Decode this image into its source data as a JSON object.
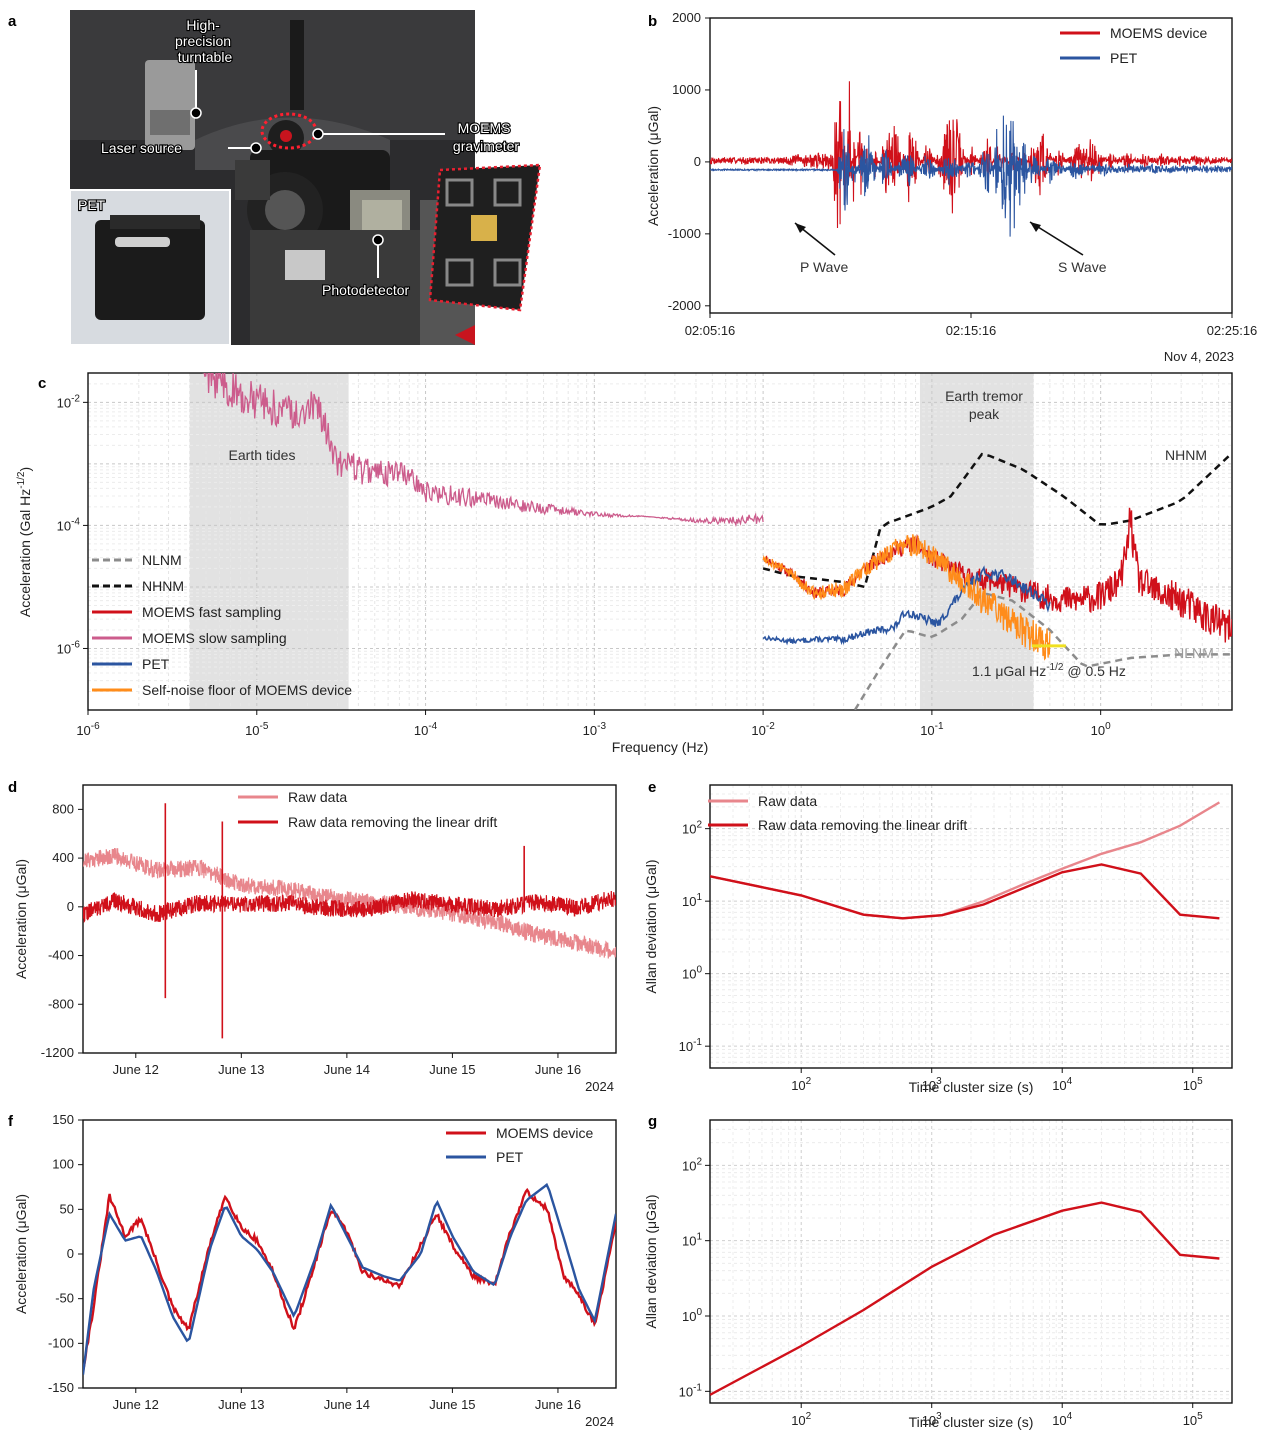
{
  "panels": {
    "a": {
      "label": "a",
      "annotations": [
        "High-precision turntable",
        "Laser source",
        "MOEMS gravimeter",
        "PET",
        "Photodetector"
      ]
    },
    "b": {
      "label": "b"
    },
    "c": {
      "label": "c"
    },
    "d": {
      "label": "d"
    },
    "e": {
      "label": "e"
    },
    "f": {
      "label": "f"
    },
    "g": {
      "label": "g"
    }
  },
  "colors": {
    "moems": "#d0101a",
    "pet": "#2b55a0",
    "slow": "#cc5c8c",
    "noise": "#ff8c1a",
    "raw": "#e8868c",
    "nlnm": "#8c8c8c",
    "nhnm": "#111111",
    "highlight": "#f0e020"
  },
  "chart_data": [
    {
      "id": "b",
      "type": "line",
      "title": "",
      "xlabel": "",
      "ylabel": "Acceleration (μGal)",
      "xticks": [
        "02:05:16",
        "02:15:16",
        "02:25:16"
      ],
      "x_note": "Nov 4, 2023",
      "ylim": [
        -2100,
        2000
      ],
      "yticks": [
        -2000,
        -1000,
        0,
        1000,
        2000
      ],
      "series": [
        {
          "name": "MOEMS device",
          "color": "#d0101a",
          "x": [
            0,
            100,
            200,
            280,
            300,
            310,
            320,
            330,
            345,
            360,
            380,
            420,
            460,
            500,
            540,
            560,
            600,
            640,
            660,
            700,
            720,
            760,
            800,
            840,
            880,
            920,
            960,
            1000,
            1040,
            1080,
            1120,
            1160,
            1200
          ],
          "y": [
            0,
            20,
            100,
            150,
            1700,
            -900,
            1500,
            -700,
            800,
            -400,
            300,
            -1000,
            800,
            -400,
            600,
            900,
            -300,
            450,
            -250,
            300,
            -200,
            700,
            -250,
            250,
            400,
            -150,
            200,
            -150,
            150,
            -100,
            120,
            -80,
            60
          ]
        },
        {
          "name": "PET",
          "color": "#2b55a0",
          "x": [
            0,
            100,
            200,
            290,
            300,
            310,
            330,
            360,
            400,
            450,
            500,
            550,
            600,
            640,
            660,
            680,
            690,
            700,
            710,
            720,
            740,
            780,
            840,
            900,
            960,
            1020,
            1080,
            1140,
            1200
          ],
          "y": [
            -100,
            -100,
            -110,
            -110,
            500,
            -950,
            400,
            -700,
            400,
            -400,
            300,
            -300,
            250,
            -500,
            700,
            -1600,
            1550,
            -1900,
            900,
            -600,
            400,
            -300,
            200,
            -150,
            100,
            -100,
            50,
            -50,
            20
          ]
        }
      ],
      "annotations": [
        "P Wave",
        "S Wave"
      ],
      "legend": "top-right"
    },
    {
      "id": "c",
      "type": "line",
      "xscale": "log",
      "yscale": "log",
      "xlabel": "Frequency (Hz)",
      "ylabel": "Acceleration (Gal Hz^-1/2)",
      "ylabel_base": "Acceleration (Gal Hz",
      "ylabel_exp": "-1/2",
      "ylabel_close": ")",
      "xlim": [
        1e-06,
        6
      ],
      "ylim": [
        1e-07,
        0.03
      ],
      "xticks_exp": [
        "-6",
        "-5",
        "-4",
        "-3",
        "-2",
        "-1",
        "0"
      ],
      "yticks_exp": [
        "-6",
        "-4",
        "-2"
      ],
      "shaded_bands": [
        {
          "label": "Earth tides",
          "x0": 4e-06,
          "x1": 3.5e-05
        },
        {
          "label_line1": "Earth tremor",
          "label_line2": "peak",
          "x0": 0.085,
          "x1": 0.4
        }
      ],
      "band_labels": [
        "Earth tides",
        "Earth tremor",
        "peak"
      ],
      "series": [
        {
          "name": "NLNM",
          "color": "#8c8c8c",
          "dash": "dashed",
          "x": [
            0.035,
            0.05,
            0.07,
            0.1,
            0.15,
            0.2,
            0.3,
            0.5,
            0.8,
            1.5,
            3,
            6
          ],
          "y": [
            1e-07,
            5e-07,
            2e-06,
            1.5e-06,
            3e-06,
            8e-06,
            6e-06,
            2e-06,
            5e-07,
            7e-07,
            8e-07,
            8e-07
          ]
        },
        {
          "name": "NHNM",
          "color": "#111111",
          "dash": "dashed",
          "x": [
            0.01,
            0.015,
            0.03,
            0.04,
            0.05,
            0.1,
            0.13,
            0.2,
            0.35,
            0.6,
            1.0,
            1.5,
            3.0,
            6.0
          ],
          "y": [
            2e-05,
            1.5e-05,
            1.2e-05,
            1e-05,
            0.0001,
            0.0002,
            0.0003,
            0.0015,
            0.0008,
            0.0003,
            0.0001,
            0.00012,
            0.00025,
            0.0015
          ]
        },
        {
          "name": "MOEMS fast sampling",
          "color": "#d0101a",
          "x": [
            0.01,
            0.015,
            0.02,
            0.03,
            0.04,
            0.06,
            0.08,
            0.1,
            0.13,
            0.17,
            0.22,
            0.3,
            0.45,
            0.7,
            1.0,
            1.3,
            1.45,
            1.5,
            1.55,
            1.7,
            2.2,
            3.0,
            4.5,
            6.0
          ],
          "y": [
            3e-05,
            1.6e-05,
            8e-06,
            9e-06,
            2e-05,
            4e-05,
            5e-05,
            3e-05,
            2e-05,
            1.4e-05,
            1.3e-05,
            1e-05,
            7e-06,
            6e-06,
            7e-06,
            1.2e-05,
            5e-05,
            0.0002,
            5e-05,
            1.2e-05,
            8e-06,
            6e-06,
            3e-06,
            2e-06
          ]
        },
        {
          "name": "MOEMS slow sampling",
          "color": "#cc5c8c",
          "x": [
            4.5e-06,
            8e-06,
            1.3e-05,
            1.8e-05,
            2.3e-05,
            3e-05,
            4e-05,
            6e-05,
            8e-05,
            0.0001,
            0.00015,
            0.00025,
            0.0004,
            0.0007,
            0.001,
            0.002,
            0.004,
            0.007,
            0.01
          ],
          "y": [
            0.04,
            0.012,
            0.008,
            0.007,
            0.009,
            0.0011,
            0.0008,
            0.0007,
            0.0007,
            0.00035,
            0.0003,
            0.00025,
            0.0002,
            0.00017,
            0.00015,
            0.00014,
            0.00012,
            0.00012,
            0.00013
          ]
        },
        {
          "name": "PET",
          "color": "#2b55a0",
          "x": [
            0.01,
            0.015,
            0.02,
            0.03,
            0.04,
            0.05,
            0.06,
            0.07,
            0.09,
            0.11,
            0.13,
            0.16,
            0.2,
            0.25,
            0.3,
            0.4,
            0.5
          ],
          "y": [
            1.5e-06,
            1.3e-06,
            1.4e-06,
            1.4e-06,
            1.8e-06,
            2e-06,
            2.2e-06,
            4e-06,
            3e-06,
            2.5e-06,
            5e-06,
            1e-05,
            1.7e-05,
            1.6e-05,
            1.3e-05,
            8e-06,
            5e-06
          ]
        },
        {
          "name": "Self-noise floor of MOEMS device",
          "color": "#ff8c1a",
          "x": [
            0.01,
            0.015,
            0.02,
            0.03,
            0.04,
            0.06,
            0.08,
            0.1,
            0.13,
            0.16,
            0.2,
            0.25,
            0.3,
            0.4,
            0.5
          ],
          "y": [
            3e-05,
            1.6e-05,
            8e-06,
            9e-06,
            2e-05,
            4e-05,
            5e-05,
            3e-05,
            1.8e-05,
            1.2e-05,
            6e-06,
            4e-06,
            2.5e-06,
            1.6e-06,
            1.1e-06
          ]
        }
      ],
      "curve_labels": [
        "NHNM",
        "NLNM"
      ],
      "annotation_parts": [
        "1.1 μGal Hz",
        "-1/2",
        " @ 0.5 Hz"
      ],
      "annotation_point": {
        "x": 0.5,
        "y": 1.1e-06
      },
      "legend": "bottom-left"
    },
    {
      "id": "d",
      "type": "line",
      "xlabel": "",
      "ylabel": "Acceleration (μGal)",
      "xticks": [
        "June 12",
        "June 13",
        "June 14",
        "June 15",
        "June 16"
      ],
      "x_note": "2024",
      "xlim": [
        11.5,
        16.55
      ],
      "ylim": [
        -1200,
        1000
      ],
      "yticks": [
        -1200,
        -800,
        -400,
        0,
        400,
        800
      ],
      "series": [
        {
          "name": "Raw data",
          "color": "#e8868c",
          "x": [
            11.5,
            11.8,
            12.2,
            12.6,
            13.0,
            13.4,
            13.8,
            14.2,
            14.6,
            15.0,
            15.4,
            15.8,
            16.2,
            16.55
          ],
          "y": [
            380,
            420,
            300,
            320,
            180,
            150,
            80,
            40,
            0,
            -60,
            -120,
            -230,
            -300,
            -380
          ]
        },
        {
          "name": "Raw data removing the linear drift",
          "color": "#d0101a",
          "x": [
            11.5,
            11.8,
            12.2,
            12.6,
            13.0,
            13.4,
            13.8,
            14.2,
            14.6,
            15.0,
            15.4,
            15.8,
            16.2,
            16.55
          ],
          "y": [
            -60,
            50,
            -60,
            30,
            20,
            30,
            -10,
            -20,
            60,
            20,
            -20,
            40,
            -10,
            80
          ]
        }
      ],
      "spikes": [
        {
          "x": 12.28,
          "hi": 850,
          "lo": -750
        },
        {
          "x": 12.82,
          "hi": 700,
          "lo": -1080
        },
        {
          "x": 15.68,
          "hi": 500,
          "lo": 0
        }
      ],
      "legend": "top-center"
    },
    {
      "id": "e",
      "type": "line",
      "xscale": "log",
      "yscale": "log",
      "xlabel": "Time cluster size (s)",
      "ylabel": "Allan deviation (μGal)",
      "xlim": [
        20,
        200000
      ],
      "ylim": [
        0.05,
        400
      ],
      "xticks_exp": [
        "2",
        "3",
        "4",
        "5"
      ],
      "yticks_exp": [
        "-1",
        "0",
        "1",
        "2"
      ],
      "series": [
        {
          "name": "Raw data",
          "color": "#e8868c",
          "x": [
            20,
            100,
            300,
            600,
            1200,
            2500,
            5000,
            10000,
            20000,
            40000,
            80000,
            160000
          ],
          "y": [
            22,
            12,
            6.5,
            5.8,
            6.4,
            10,
            17,
            28,
            45,
            65,
            110,
            230
          ]
        },
        {
          "name": "Raw data removing the linear drift",
          "color": "#d0101a",
          "x": [
            20,
            100,
            300,
            600,
            1200,
            2500,
            5000,
            10000,
            20000,
            40000,
            80000,
            160000
          ],
          "y": [
            22,
            12,
            6.5,
            5.8,
            6.4,
            9,
            15,
            25,
            32,
            24,
            6.5,
            5.8
          ]
        }
      ],
      "legend": "top-left"
    },
    {
      "id": "f",
      "type": "line",
      "xlabel": "",
      "ylabel": "Acceleration (μGal)",
      "xticks": [
        "June 12",
        "June 13",
        "June 14",
        "June 15",
        "June 16"
      ],
      "x_note": "2024",
      "xlim": [
        11.5,
        16.55
      ],
      "ylim": [
        -150,
        150
      ],
      "yticks": [
        -150,
        -100,
        -50,
        0,
        50,
        100,
        150
      ],
      "series": [
        {
          "name": "MOEMS device",
          "color": "#d0101a",
          "x": [
            11.5,
            11.6,
            11.75,
            11.9,
            12.05,
            12.2,
            12.35,
            12.5,
            12.7,
            12.85,
            13.0,
            13.15,
            13.3,
            13.5,
            13.7,
            13.85,
            14.0,
            14.15,
            14.35,
            14.5,
            14.7,
            14.85,
            15.0,
            15.2,
            15.4,
            15.55,
            15.7,
            15.9,
            16.05,
            16.2,
            16.35,
            16.55
          ],
          "y": [
            -130,
            -60,
            65,
            20,
            40,
            -10,
            -60,
            -85,
            10,
            65,
            30,
            15,
            -20,
            -85,
            -10,
            50,
            25,
            -20,
            -30,
            -35,
            10,
            45,
            10,
            -25,
            -35,
            25,
            70,
            50,
            -25,
            -45,
            -80,
            35
          ]
        },
        {
          "name": "PET",
          "color": "#2b55a0",
          "x": [
            11.5,
            11.6,
            11.75,
            11.9,
            12.05,
            12.2,
            12.35,
            12.5,
            12.7,
            12.85,
            13.0,
            13.15,
            13.3,
            13.5,
            13.7,
            13.85,
            14.0,
            14.15,
            14.35,
            14.5,
            14.7,
            14.85,
            15.0,
            15.2,
            15.4,
            15.55,
            15.7,
            15.9,
            16.05,
            16.2,
            16.35,
            16.55
          ],
          "y": [
            -135,
            -40,
            45,
            15,
            20,
            -20,
            -70,
            -100,
            5,
            55,
            20,
            5,
            -20,
            -70,
            -5,
            55,
            20,
            -15,
            -25,
            -30,
            0,
            60,
            20,
            -20,
            -35,
            20,
            60,
            78,
            20,
            -40,
            -75,
            45
          ]
        }
      ],
      "legend": "top-right"
    },
    {
      "id": "g",
      "type": "line",
      "xscale": "log",
      "yscale": "log",
      "xlabel": "Time cluster size (s)",
      "ylabel": "Allan deviation (μGal)",
      "xlim": [
        20,
        200000
      ],
      "ylim": [
        0.07,
        400
      ],
      "xticks_exp": [
        "2",
        "3",
        "4",
        "5"
      ],
      "yticks_exp": [
        "-1",
        "0",
        "1",
        "2"
      ],
      "series": [
        {
          "name": "Allan deviation",
          "color": "#d0101a",
          "x": [
            20,
            100,
            300,
            1000,
            3000,
            10000,
            20000,
            40000,
            80000,
            160000
          ],
          "y": [
            0.09,
            0.4,
            1.2,
            4.5,
            12,
            25,
            32,
            24,
            6.5,
            5.8
          ]
        }
      ]
    }
  ]
}
